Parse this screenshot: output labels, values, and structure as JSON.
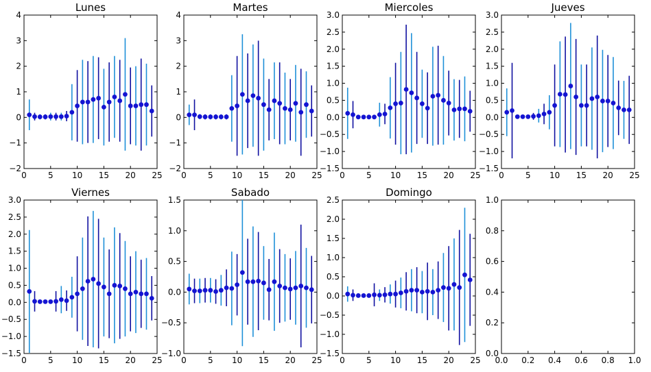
{
  "colors": {
    "dark": "#1010a0",
    "light": "#1e90d8",
    "marker": "#1414d2",
    "axes": "#000000"
  },
  "chart_data": [
    {
      "type": "scatter",
      "title": "Lunes",
      "xlim": [
        0,
        25
      ],
      "ylim": [
        -2,
        4
      ],
      "xticks": [
        "0",
        "5",
        "10",
        "15",
        "20",
        "25"
      ],
      "yticks": [
        "−2",
        "−1",
        "0",
        "1",
        "2",
        "3",
        "4"
      ],
      "x": [
        1,
        2,
        3,
        4,
        5,
        6,
        7,
        8,
        9,
        10,
        11,
        12,
        13,
        14,
        15,
        16,
        17,
        18,
        19,
        20,
        21,
        22,
        23,
        24
      ],
      "y": [
        0.1,
        0.03,
        0.02,
        0.02,
        0.03,
        0.03,
        0.03,
        0.05,
        0.2,
        0.45,
        0.6,
        0.6,
        0.7,
        0.75,
        0.4,
        0.6,
        0.8,
        0.65,
        0.9,
        0.45,
        0.45,
        0.5,
        0.5,
        0.25
      ],
      "err": [
        0.6,
        0.15,
        0.1,
        0.1,
        0.15,
        0.15,
        0.15,
        0.2,
        1.1,
        1.4,
        1.65,
        1.6,
        1.7,
        1.6,
        1.5,
        1.55,
        1.6,
        1.6,
        2.2,
        1.5,
        1.55,
        1.8,
        1.6,
        1.0
      ]
    },
    {
      "type": "scatter",
      "title": "Martes",
      "xlim": [
        0,
        25
      ],
      "ylim": [
        -2,
        4
      ],
      "xticks": [
        "0",
        "5",
        "10",
        "15",
        "20",
        "25"
      ],
      "yticks": [
        "−2",
        "−1",
        "0",
        "1",
        "2",
        "3",
        "4"
      ],
      "x": [
        1,
        2,
        3,
        4,
        5,
        6,
        7,
        8,
        9,
        10,
        11,
        12,
        13,
        14,
        15,
        16,
        17,
        18,
        19,
        20,
        21,
        22,
        23,
        24
      ],
      "y": [
        0.1,
        0.1,
        0.03,
        0.02,
        0.02,
        0.02,
        0.02,
        0.02,
        0.35,
        0.45,
        0.9,
        0.65,
        0.85,
        0.75,
        0.5,
        0.3,
        0.65,
        0.55,
        0.35,
        0.3,
        0.55,
        0.2,
        0.5,
        0.25
      ],
      "err": [
        0.4,
        0.6,
        0.1,
        0.1,
        0.1,
        0.1,
        0.1,
        0.1,
        1.3,
        1.95,
        2.35,
        1.85,
        2.0,
        2.25,
        1.8,
        1.2,
        1.5,
        1.6,
        1.4,
        1.2,
        1.5,
        1.7,
        1.3,
        1.0
      ]
    },
    {
      "type": "scatter",
      "title": "Miercoles",
      "xlim": [
        0,
        25
      ],
      "ylim": [
        -1.5,
        3.0
      ],
      "xticks": [
        "0",
        "5",
        "10",
        "15",
        "20",
        "25"
      ],
      "yticks": [
        "−1.5",
        "−1.0",
        "−0.5",
        "0.0",
        "0.5",
        "1.0",
        "1.5",
        "2.0",
        "2.5",
        "3.0"
      ],
      "x": [
        1,
        2,
        3,
        4,
        5,
        6,
        7,
        8,
        9,
        10,
        11,
        12,
        13,
        14,
        15,
        16,
        17,
        18,
        19,
        20,
        21,
        22,
        23,
        24
      ],
      "y": [
        0.12,
        0.08,
        0.01,
        0.01,
        0.01,
        0.01,
        0.08,
        0.1,
        0.28,
        0.4,
        0.42,
        0.82,
        0.72,
        0.57,
        0.4,
        0.27,
        0.62,
        0.65,
        0.5,
        0.42,
        0.22,
        0.25,
        0.25,
        0.18
      ],
      "err": [
        0.75,
        0.4,
        0.05,
        0.05,
        0.05,
        0.05,
        0.35,
        0.3,
        0.9,
        1.2,
        1.5,
        1.9,
        1.75,
        1.35,
        1.0,
        1.05,
        1.45,
        1.45,
        1.3,
        0.95,
        0.9,
        0.85,
        0.95,
        0.6
      ]
    },
    {
      "type": "scatter",
      "title": "Jueves",
      "xlim": [
        0,
        25
      ],
      "ylim": [
        -1.5,
        3.0
      ],
      "xticks": [
        "0",
        "5",
        "10",
        "15",
        "20",
        "25"
      ],
      "yticks": [
        "−1.5",
        "−1.0",
        "−0.5",
        "0.0",
        "0.5",
        "1.0",
        "1.5",
        "2.0",
        "2.5",
        "3.0"
      ],
      "x": [
        1,
        2,
        3,
        4,
        5,
        6,
        7,
        8,
        9,
        10,
        11,
        12,
        13,
        14,
        15,
        16,
        17,
        18,
        19,
        20,
        21,
        22,
        23,
        24
      ],
      "y": [
        0.15,
        0.2,
        0.02,
        0.02,
        0.02,
        0.03,
        0.05,
        0.1,
        0.15,
        0.35,
        0.68,
        0.67,
        0.92,
        0.6,
        0.35,
        0.35,
        0.55,
        0.6,
        0.48,
        0.48,
        0.42,
        0.28,
        0.22,
        0.22
      ],
      "err": [
        0.7,
        1.4,
        0.05,
        0.05,
        0.05,
        0.1,
        0.2,
        0.3,
        0.5,
        1.2,
        1.55,
        1.7,
        1.85,
        1.7,
        1.2,
        1.2,
        1.5,
        1.8,
        1.5,
        1.35,
        1.35,
        0.8,
        0.85,
        1.0
      ]
    },
    {
      "type": "scatter",
      "title": "Viernes",
      "xlim": [
        0,
        25
      ],
      "ylim": [
        -1.5,
        3.0
      ],
      "xticks": [
        "0",
        "5",
        "10",
        "15",
        "20",
        "25"
      ],
      "yticks": [
        "−1.5",
        "−1.0",
        "−0.5",
        "0.0",
        "0.5",
        "1.0",
        "1.5",
        "2.0",
        "2.5",
        "3.0"
      ],
      "x": [
        1,
        2,
        3,
        4,
        5,
        6,
        7,
        8,
        9,
        10,
        11,
        12,
        13,
        14,
        15,
        16,
        17,
        18,
        19,
        20,
        21,
        22,
        23,
        24
      ],
      "y": [
        0.32,
        0.03,
        0.02,
        0.02,
        0.02,
        0.03,
        0.08,
        0.05,
        0.15,
        0.25,
        0.4,
        0.62,
        0.68,
        0.55,
        0.45,
        0.25,
        0.5,
        0.48,
        0.4,
        0.25,
        0.3,
        0.25,
        0.25,
        0.12
      ],
      "err": [
        1.8,
        0.3,
        0.05,
        0.05,
        0.05,
        0.3,
        0.4,
        0.3,
        0.6,
        1.1,
        1.5,
        1.9,
        2.0,
        1.9,
        1.45,
        1.3,
        1.7,
        1.55,
        1.4,
        1.1,
        1.2,
        1.0,
        1.05,
        0.65
      ]
    },
    {
      "type": "scatter",
      "title": "Sabado",
      "xlim": [
        0,
        25
      ],
      "ylim": [
        -1.0,
        1.5
      ],
      "xticks": [
        "0",
        "5",
        "10",
        "15",
        "20",
        "25"
      ],
      "yticks": [
        "−1.0",
        "−0.5",
        "0.0",
        "0.5",
        "1.0",
        "1.5"
      ],
      "x": [
        1,
        2,
        3,
        4,
        5,
        6,
        7,
        8,
        9,
        10,
        11,
        12,
        13,
        14,
        15,
        16,
        17,
        18,
        19,
        20,
        21,
        22,
        23,
        24
      ],
      "y": [
        0.05,
        0.02,
        0.02,
        0.03,
        0.03,
        0.01,
        0.03,
        0.07,
        0.06,
        0.12,
        0.32,
        0.17,
        0.17,
        0.18,
        0.15,
        0.04,
        0.17,
        0.1,
        0.07,
        0.05,
        0.07,
        0.1,
        0.07,
        0.04
      ],
      "err": [
        0.25,
        0.2,
        0.2,
        0.2,
        0.2,
        0.2,
        0.25,
        0.3,
        0.6,
        0.5,
        1.2,
        0.7,
        0.9,
        0.8,
        0.6,
        0.5,
        0.8,
        0.6,
        0.55,
        0.5,
        0.6,
        1.0,
        0.65,
        0.55
      ]
    },
    {
      "type": "scatter",
      "title": "Domingo",
      "xlim": [
        0,
        25
      ],
      "ylim": [
        -1.5,
        2.5
      ],
      "xticks": [
        "0",
        "5",
        "10",
        "15",
        "20",
        "25"
      ],
      "yticks": [
        "−1.5",
        "−1.0",
        "−0.5",
        "0.0",
        "0.5",
        "1.0",
        "1.5",
        "2.0",
        "2.5"
      ],
      "x": [
        1,
        2,
        3,
        4,
        5,
        6,
        7,
        8,
        9,
        10,
        11,
        12,
        13,
        14,
        15,
        16,
        17,
        18,
        19,
        20,
        21,
        22,
        23,
        24
      ],
      "y": [
        0.05,
        0.02,
        0.01,
        0.01,
        0.01,
        0.03,
        0.02,
        0.03,
        0.05,
        0.05,
        0.08,
        0.12,
        0.15,
        0.15,
        0.1,
        0.12,
        0.1,
        0.15,
        0.22,
        0.2,
        0.3,
        0.22,
        0.55,
        0.42
      ],
      "err": [
        0.2,
        0.15,
        0.05,
        0.05,
        0.05,
        0.3,
        0.15,
        0.2,
        0.25,
        0.35,
        0.4,
        0.5,
        0.55,
        0.6,
        0.55,
        0.75,
        0.6,
        0.75,
        0.9,
        1.1,
        1.2,
        1.5,
        1.75,
        1.2
      ]
    },
    {
      "type": "scatter",
      "title": "",
      "xlim": [
        0,
        1
      ],
      "ylim": [
        0,
        1
      ],
      "xticks": [
        "0.0",
        "0.2",
        "0.4",
        "0.6",
        "0.8",
        "1.0"
      ],
      "yticks": [
        "0.0",
        "0.2",
        "0.4",
        "0.6",
        "0.8",
        "1.0"
      ],
      "x": [],
      "y": [],
      "err": []
    }
  ]
}
